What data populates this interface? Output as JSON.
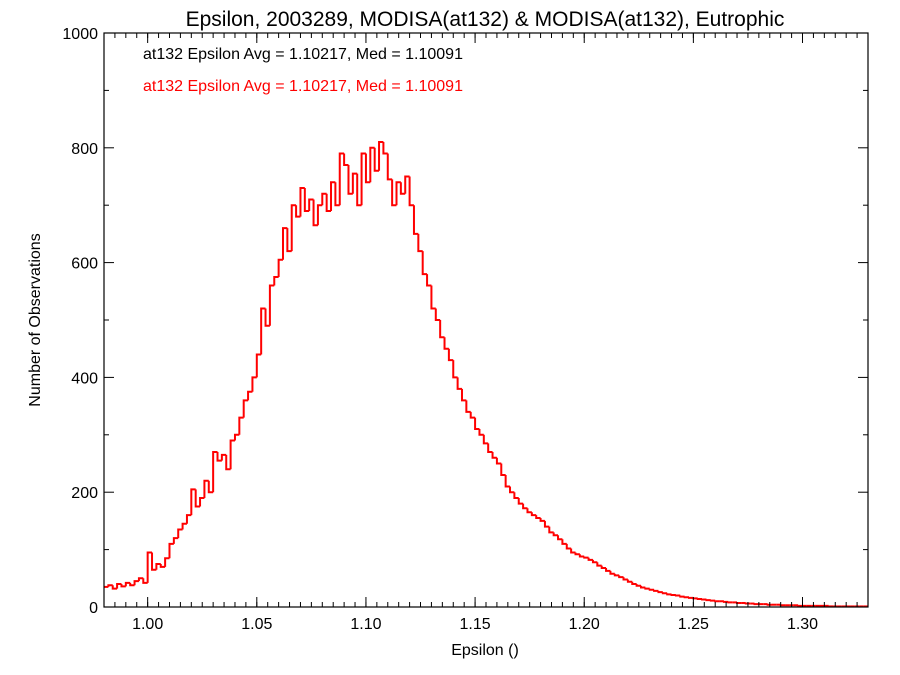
{
  "chart_data": {
    "type": "histogram",
    "title": "Epsilon, 2003289, MODISA(at132) & MODISA(at132), Eutrophic",
    "xlabel": "Epsilon ()",
    "ylabel": "Number of Observations",
    "xlim": [
      0.98,
      1.33
    ],
    "ylim": [
      0,
      1000
    ],
    "x_ticks": [
      1.0,
      1.05,
      1.1,
      1.15,
      1.2,
      1.25,
      1.3
    ],
    "x_tick_labels": [
      "1.00",
      "1.05",
      "1.10",
      "1.15",
      "1.20",
      "1.25",
      "1.30"
    ],
    "y_ticks": [
      0,
      200,
      400,
      600,
      800,
      1000
    ],
    "y_tick_labels": [
      "0",
      "200",
      "400",
      "600",
      "800",
      "1000"
    ],
    "grid": false,
    "annotations": [
      {
        "text": "at132 Epsilon Avg = 1.10217, Med = 1.10091",
        "color": "#000000"
      },
      {
        "text": "at132 Epsilon Avg = 1.10217, Med = 1.10091",
        "color": "#ff0000"
      }
    ],
    "series": [
      {
        "color": "#ff0000",
        "bin_width": 0.002,
        "x": [
          0.981,
          0.983,
          0.985,
          0.987,
          0.989,
          0.991,
          0.993,
          0.995,
          0.997,
          0.999,
          1.001,
          1.003,
          1.005,
          1.007,
          1.009,
          1.011,
          1.013,
          1.015,
          1.017,
          1.019,
          1.021,
          1.023,
          1.025,
          1.027,
          1.029,
          1.031,
          1.033,
          1.035,
          1.037,
          1.039,
          1.041,
          1.043,
          1.045,
          1.047,
          1.049,
          1.051,
          1.053,
          1.055,
          1.057,
          1.059,
          1.061,
          1.063,
          1.065,
          1.067,
          1.069,
          1.071,
          1.073,
          1.075,
          1.077,
          1.079,
          1.081,
          1.083,
          1.085,
          1.087,
          1.089,
          1.091,
          1.093,
          1.095,
          1.097,
          1.099,
          1.101,
          1.103,
          1.105,
          1.107,
          1.109,
          1.111,
          1.113,
          1.115,
          1.117,
          1.119,
          1.121,
          1.123,
          1.125,
          1.127,
          1.129,
          1.131,
          1.133,
          1.135,
          1.137,
          1.139,
          1.141,
          1.143,
          1.145,
          1.147,
          1.149,
          1.151,
          1.153,
          1.155,
          1.157,
          1.159,
          1.161,
          1.163,
          1.165,
          1.167,
          1.169,
          1.171,
          1.173,
          1.175,
          1.177,
          1.179,
          1.181,
          1.183,
          1.185,
          1.187,
          1.189,
          1.191,
          1.193,
          1.195,
          1.197,
          1.199,
          1.201,
          1.203,
          1.205,
          1.207,
          1.209,
          1.211,
          1.213,
          1.215,
          1.217,
          1.219,
          1.221,
          1.223,
          1.225,
          1.227,
          1.229,
          1.231,
          1.233,
          1.235,
          1.237,
          1.239,
          1.241,
          1.243,
          1.245,
          1.247,
          1.249,
          1.251,
          1.253,
          1.255,
          1.257,
          1.259,
          1.261,
          1.263,
          1.265,
          1.267,
          1.269,
          1.271,
          1.273,
          1.275,
          1.277,
          1.279,
          1.281,
          1.283,
          1.285,
          1.287,
          1.289,
          1.291,
          1.293,
          1.295,
          1.297,
          1.299,
          1.301,
          1.303,
          1.305,
          1.307,
          1.309,
          1.311,
          1.313,
          1.315,
          1.317,
          1.319,
          1.321,
          1.323,
          1.325,
          1.327,
          1.329
        ],
        "values": [
          35,
          38,
          32,
          40,
          36,
          42,
          38,
          45,
          50,
          42,
          95,
          65,
          75,
          70,
          85,
          110,
          120,
          135,
          145,
          160,
          205,
          175,
          190,
          220,
          200,
          270,
          255,
          265,
          240,
          290,
          300,
          330,
          360,
          375,
          400,
          440,
          520,
          490,
          560,
          575,
          605,
          660,
          620,
          700,
          680,
          730,
          690,
          710,
          665,
          700,
          720,
          690,
          740,
          700,
          790,
          770,
          720,
          755,
          700,
          790,
          740,
          800,
          760,
          810,
          790,
          745,
          700,
          740,
          720,
          750,
          700,
          650,
          620,
          580,
          560,
          520,
          500,
          470,
          450,
          430,
          400,
          380,
          360,
          340,
          330,
          310,
          300,
          285,
          270,
          260,
          250,
          230,
          210,
          200,
          190,
          180,
          172,
          165,
          160,
          155,
          150,
          140,
          130,
          125,
          118,
          110,
          102,
          95,
          92,
          88,
          86,
          82,
          78,
          72,
          68,
          63,
          58,
          55,
          52,
          48,
          44,
          40,
          37,
          34,
          32,
          30,
          28,
          26,
          24,
          22,
          21,
          20,
          18,
          17,
          16,
          15,
          14,
          13,
          12,
          11,
          10,
          10,
          9,
          8,
          8,
          7,
          7,
          6,
          6,
          5,
          5,
          5,
          4,
          4,
          4,
          3,
          3,
          3,
          3,
          2,
          2,
          2,
          2,
          2,
          2,
          2,
          1,
          1,
          1,
          1,
          1,
          1,
          1,
          1,
          1
        ]
      }
    ]
  }
}
